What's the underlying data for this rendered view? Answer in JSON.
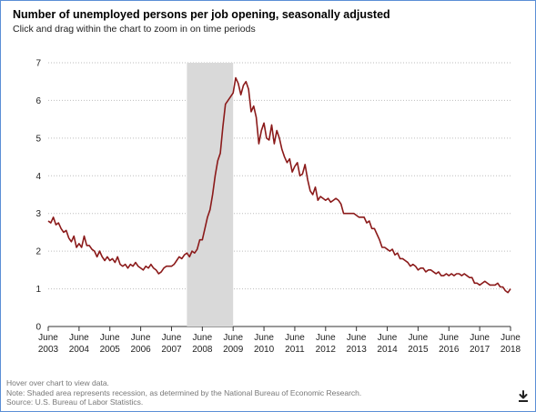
{
  "title": "Number of unemployed persons per job opening, seasonally adjusted",
  "subtitle": "Click and drag within the chart to zoom in on time periods",
  "footer": {
    "hover": "Hover over chart to view data.",
    "note": "Note: Shaded area represents recession, as determined by the National Bureau of Economic Research.",
    "source": "Source: U.S. Bureau of Labor Statistics."
  },
  "download_icon": "download-icon",
  "chart_data": {
    "type": "line",
    "title": "Number of unemployed persons per job opening, seasonally adjusted",
    "xlabel": "",
    "ylabel": "",
    "xlim": [
      "2003-06",
      "2018-06"
    ],
    "ylim": [
      0,
      7
    ],
    "y_ticks": [
      0,
      1,
      2,
      3,
      4,
      5,
      6,
      7
    ],
    "x_ticks": [
      {
        "month": "June",
        "year": "2003"
      },
      {
        "month": "June",
        "year": "2004"
      },
      {
        "month": "June",
        "year": "2005"
      },
      {
        "month": "June",
        "year": "2006"
      },
      {
        "month": "June",
        "year": "2007"
      },
      {
        "month": "June",
        "year": "2008"
      },
      {
        "month": "June",
        "year": "2009"
      },
      {
        "month": "June",
        "year": "2010"
      },
      {
        "month": "June",
        "year": "2011"
      },
      {
        "month": "June",
        "year": "2012"
      },
      {
        "month": "June",
        "year": "2013"
      },
      {
        "month": "June",
        "year": "2014"
      },
      {
        "month": "June",
        "year": "2015"
      },
      {
        "month": "June",
        "year": "2016"
      },
      {
        "month": "June",
        "year": "2017"
      },
      {
        "month": "June",
        "year": "2018"
      }
    ],
    "grid": "horizontal dotted",
    "line_color": "#8b1a1a",
    "recession": {
      "start": "2007-12",
      "end": "2009-06",
      "color": "#d9d9d9"
    },
    "series": [
      {
        "values": [
          [
            "2003-06",
            2.8
          ],
          [
            "2003-07",
            2.75
          ],
          [
            "2003-08",
            2.9
          ],
          [
            "2003-09",
            2.7
          ],
          [
            "2003-10",
            2.75
          ],
          [
            "2003-11",
            2.6
          ],
          [
            "2003-12",
            2.5
          ],
          [
            "2004-01",
            2.55
          ],
          [
            "2004-02",
            2.35
          ],
          [
            "2004-03",
            2.25
          ],
          [
            "2004-04",
            2.4
          ],
          [
            "2004-05",
            2.1
          ],
          [
            "2004-06",
            2.2
          ],
          [
            "2004-07",
            2.1
          ],
          [
            "2004-08",
            2.4
          ],
          [
            "2004-09",
            2.15
          ],
          [
            "2004-10",
            2.15
          ],
          [
            "2004-11",
            2.05
          ],
          [
            "2004-12",
            2.0
          ],
          [
            "2005-01",
            1.85
          ],
          [
            "2005-02",
            2.0
          ],
          [
            "2005-03",
            1.85
          ],
          [
            "2005-04",
            1.75
          ],
          [
            "2005-05",
            1.85
          ],
          [
            "2005-06",
            1.75
          ],
          [
            "2005-07",
            1.8
          ],
          [
            "2005-08",
            1.7
          ],
          [
            "2005-09",
            1.85
          ],
          [
            "2005-10",
            1.65
          ],
          [
            "2005-11",
            1.6
          ],
          [
            "2005-12",
            1.65
          ],
          [
            "2006-01",
            1.55
          ],
          [
            "2006-02",
            1.65
          ],
          [
            "2006-03",
            1.6
          ],
          [
            "2006-04",
            1.7
          ],
          [
            "2006-05",
            1.6
          ],
          [
            "2006-06",
            1.55
          ],
          [
            "2006-07",
            1.5
          ],
          [
            "2006-08",
            1.6
          ],
          [
            "2006-09",
            1.55
          ],
          [
            "2006-10",
            1.65
          ],
          [
            "2006-11",
            1.55
          ],
          [
            "2006-12",
            1.5
          ],
          [
            "2007-01",
            1.4
          ],
          [
            "2007-02",
            1.45
          ],
          [
            "2007-03",
            1.55
          ],
          [
            "2007-04",
            1.6
          ],
          [
            "2007-05",
            1.6
          ],
          [
            "2007-06",
            1.6
          ],
          [
            "2007-07",
            1.65
          ],
          [
            "2007-08",
            1.75
          ],
          [
            "2007-09",
            1.85
          ],
          [
            "2007-10",
            1.8
          ],
          [
            "2007-11",
            1.9
          ],
          [
            "2007-12",
            1.95
          ],
          [
            "2008-01",
            1.85
          ],
          [
            "2008-02",
            2.0
          ],
          [
            "2008-03",
            1.95
          ],
          [
            "2008-04",
            2.05
          ],
          [
            "2008-05",
            2.3
          ],
          [
            "2008-06",
            2.3
          ],
          [
            "2008-07",
            2.6
          ],
          [
            "2008-08",
            2.9
          ],
          [
            "2008-09",
            3.1
          ],
          [
            "2008-10",
            3.5
          ],
          [
            "2008-11",
            4.0
          ],
          [
            "2008-12",
            4.4
          ],
          [
            "2009-01",
            4.6
          ],
          [
            "2009-02",
            5.3
          ],
          [
            "2009-03",
            5.9
          ],
          [
            "2009-04",
            6.0
          ],
          [
            "2009-05",
            6.1
          ],
          [
            "2009-06",
            6.2
          ],
          [
            "2009-07",
            6.6
          ],
          [
            "2009-08",
            6.45
          ],
          [
            "2009-09",
            6.15
          ],
          [
            "2009-10",
            6.4
          ],
          [
            "2009-11",
            6.5
          ],
          [
            "2009-12",
            6.3
          ],
          [
            "2010-01",
            5.7
          ],
          [
            "2010-02",
            5.85
          ],
          [
            "2010-03",
            5.55
          ],
          [
            "2010-04",
            4.85
          ],
          [
            "2010-05",
            5.2
          ],
          [
            "2010-06",
            5.4
          ],
          [
            "2010-07",
            5.0
          ],
          [
            "2010-08",
            4.95
          ],
          [
            "2010-09",
            5.35
          ],
          [
            "2010-10",
            4.85
          ],
          [
            "2010-11",
            5.2
          ],
          [
            "2010-12",
            5.0
          ],
          [
            "2011-01",
            4.7
          ],
          [
            "2011-02",
            4.5
          ],
          [
            "2011-03",
            4.35
          ],
          [
            "2011-04",
            4.45
          ],
          [
            "2011-05",
            4.1
          ],
          [
            "2011-06",
            4.25
          ],
          [
            "2011-07",
            4.35
          ],
          [
            "2011-08",
            4.0
          ],
          [
            "2011-09",
            4.05
          ],
          [
            "2011-10",
            4.3
          ],
          [
            "2011-11",
            3.9
          ],
          [
            "2011-12",
            3.6
          ],
          [
            "2012-01",
            3.5
          ],
          [
            "2012-02",
            3.7
          ],
          [
            "2012-03",
            3.35
          ],
          [
            "2012-04",
            3.45
          ],
          [
            "2012-05",
            3.4
          ],
          [
            "2012-06",
            3.35
          ],
          [
            "2012-07",
            3.4
          ],
          [
            "2012-08",
            3.3
          ],
          [
            "2012-09",
            3.35
          ],
          [
            "2012-10",
            3.4
          ],
          [
            "2012-11",
            3.35
          ],
          [
            "2012-12",
            3.25
          ],
          [
            "2013-01",
            3.0
          ],
          [
            "2013-02",
            3.0
          ],
          [
            "2013-03",
            3.0
          ],
          [
            "2013-04",
            3.0
          ],
          [
            "2013-05",
            3.0
          ],
          [
            "2013-06",
            2.95
          ],
          [
            "2013-07",
            2.9
          ],
          [
            "2013-08",
            2.9
          ],
          [
            "2013-09",
            2.9
          ],
          [
            "2013-10",
            2.75
          ],
          [
            "2013-11",
            2.8
          ],
          [
            "2013-12",
            2.6
          ],
          [
            "2014-01",
            2.6
          ],
          [
            "2014-02",
            2.45
          ],
          [
            "2014-03",
            2.3
          ],
          [
            "2014-04",
            2.1
          ],
          [
            "2014-05",
            2.1
          ],
          [
            "2014-06",
            2.05
          ],
          [
            "2014-07",
            2.0
          ],
          [
            "2014-08",
            2.05
          ],
          [
            "2014-09",
            1.9
          ],
          [
            "2014-10",
            1.95
          ],
          [
            "2014-11",
            1.8
          ],
          [
            "2014-12",
            1.8
          ],
          [
            "2015-01",
            1.75
          ],
          [
            "2015-02",
            1.7
          ],
          [
            "2015-03",
            1.6
          ],
          [
            "2015-04",
            1.65
          ],
          [
            "2015-05",
            1.6
          ],
          [
            "2015-06",
            1.5
          ],
          [
            "2015-07",
            1.55
          ],
          [
            "2015-08",
            1.55
          ],
          [
            "2015-09",
            1.45
          ],
          [
            "2015-10",
            1.5
          ],
          [
            "2015-11",
            1.5
          ],
          [
            "2015-12",
            1.45
          ],
          [
            "2016-01",
            1.4
          ],
          [
            "2016-02",
            1.45
          ],
          [
            "2016-03",
            1.35
          ],
          [
            "2016-04",
            1.35
          ],
          [
            "2016-05",
            1.4
          ],
          [
            "2016-06",
            1.35
          ],
          [
            "2016-07",
            1.4
          ],
          [
            "2016-08",
            1.35
          ],
          [
            "2016-09",
            1.4
          ],
          [
            "2016-10",
            1.4
          ],
          [
            "2016-11",
            1.35
          ],
          [
            "2016-12",
            1.4
          ],
          [
            "2017-01",
            1.35
          ],
          [
            "2017-02",
            1.3
          ],
          [
            "2017-03",
            1.3
          ],
          [
            "2017-04",
            1.15
          ],
          [
            "2017-05",
            1.15
          ],
          [
            "2017-06",
            1.1
          ],
          [
            "2017-07",
            1.15
          ],
          [
            "2017-08",
            1.2
          ],
          [
            "2017-09",
            1.15
          ],
          [
            "2017-10",
            1.1
          ],
          [
            "2017-11",
            1.1
          ],
          [
            "2017-12",
            1.1
          ],
          [
            "2018-01",
            1.15
          ],
          [
            "2018-02",
            1.05
          ],
          [
            "2018-03",
            1.05
          ],
          [
            "2018-04",
            0.95
          ],
          [
            "2018-05",
            0.9
          ],
          [
            "2018-06",
            1.0
          ]
        ]
      }
    ]
  }
}
